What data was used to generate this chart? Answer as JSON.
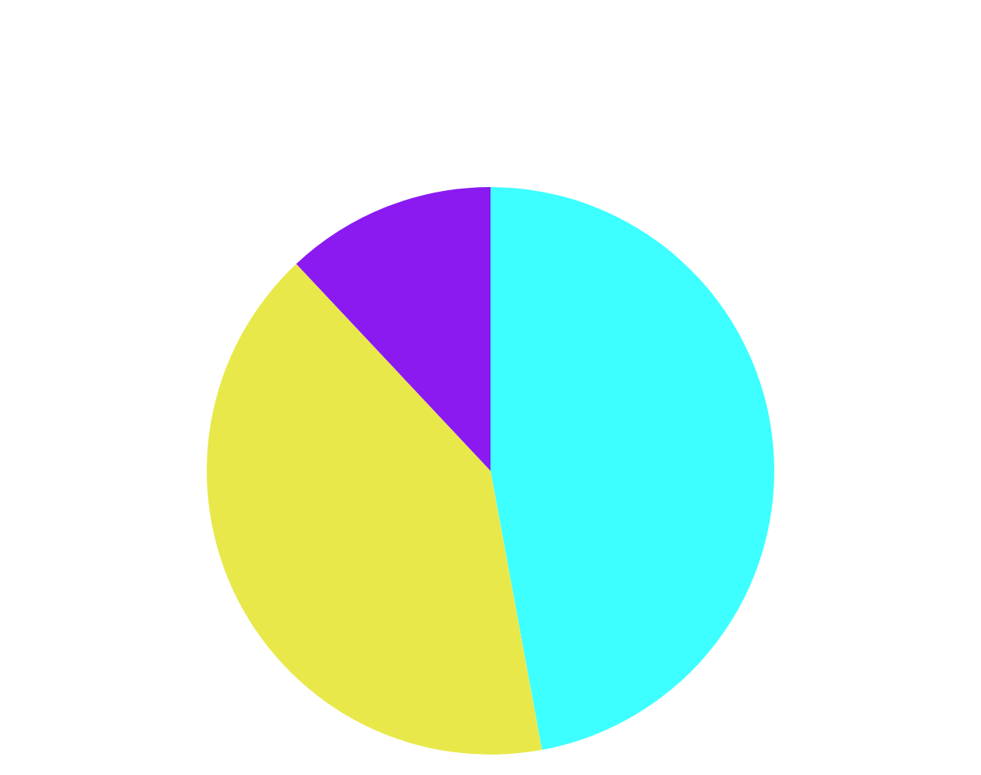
{
  "chart_data": {
    "type": "pie",
    "categories": [
      null,
      null,
      null
    ],
    "values": [
      47.1,
      40.9,
      12.0
    ],
    "colors": [
      "#3effff",
      "#e8e84a",
      "#8a1af0"
    ],
    "legend": false
  }
}
